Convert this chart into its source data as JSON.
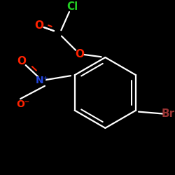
{
  "background_color": "#000000",
  "atom_colors": {
    "C": "#ffffff",
    "O": "#ff2200",
    "N": "#2244dd",
    "Cl": "#22cc22",
    "Br": "#993333"
  },
  "bond_color": "#ffffff",
  "bond_width": 1.6
}
